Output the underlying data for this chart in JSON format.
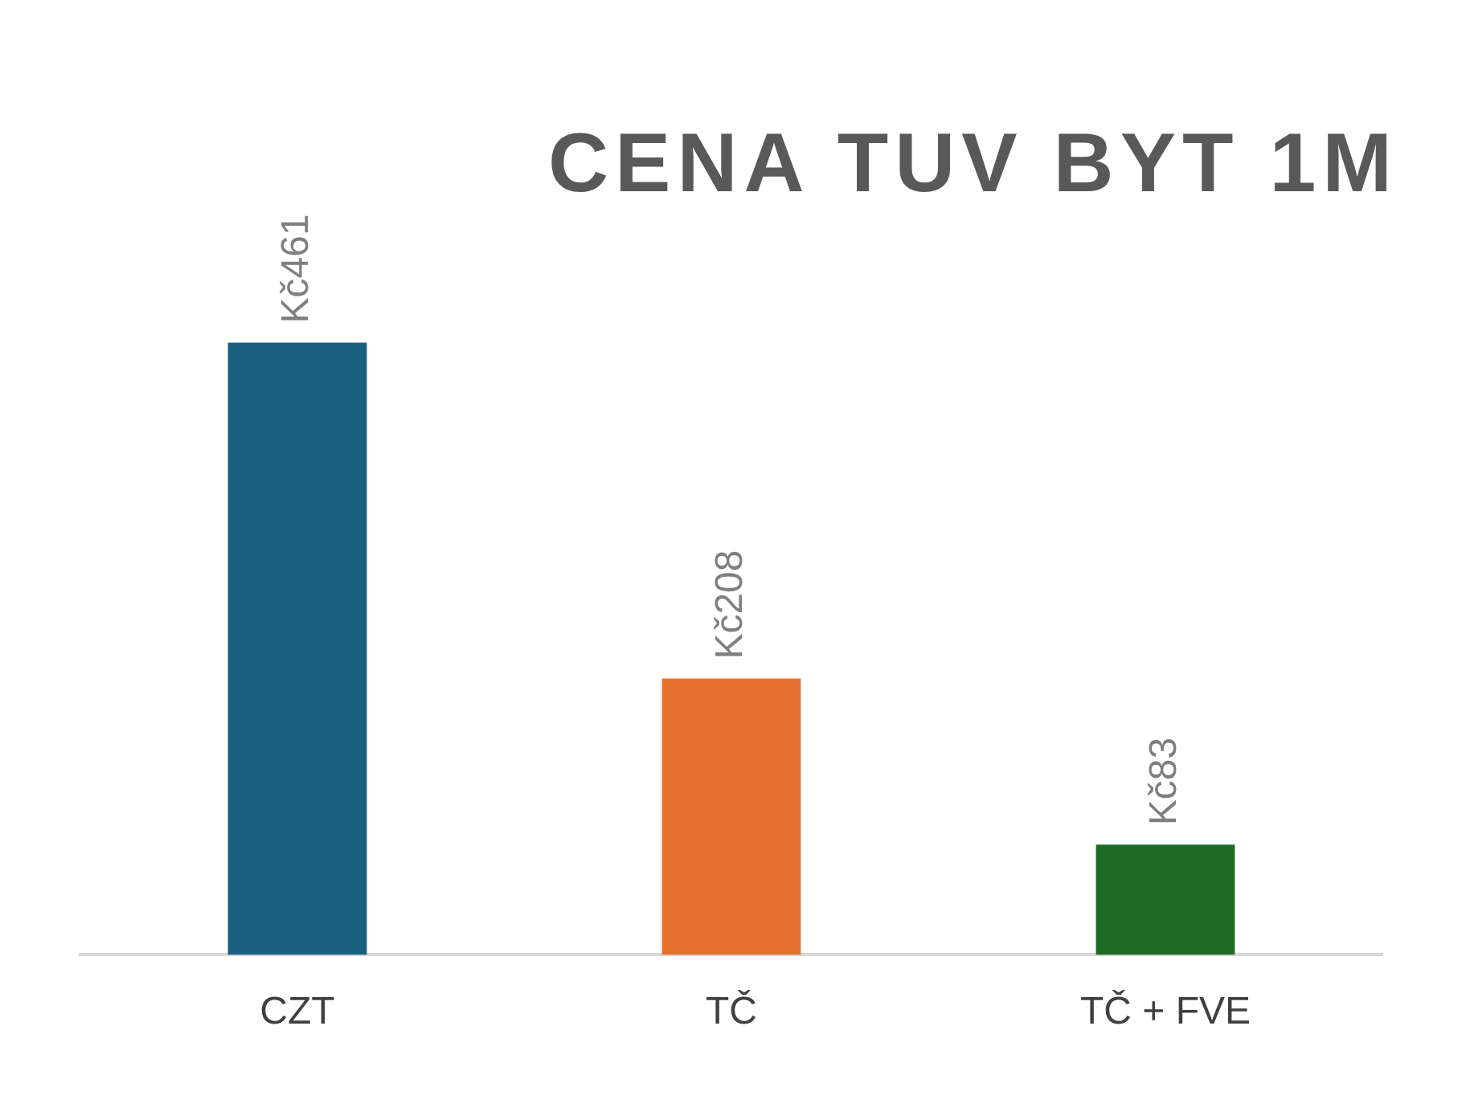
{
  "chart_data": {
    "type": "bar",
    "title": "CENA TUV BYT 1M",
    "categories": [
      "CZT",
      "TČ",
      "TČ + FVE"
    ],
    "values": [
      461,
      208,
      83
    ],
    "colors": [
      "#1a5e80",
      "#e8702f",
      "#1e6b25"
    ],
    "value_labels": [
      "Kč461",
      "Kč208",
      "Kč83"
    ],
    "grid": false,
    "legend": false
  }
}
